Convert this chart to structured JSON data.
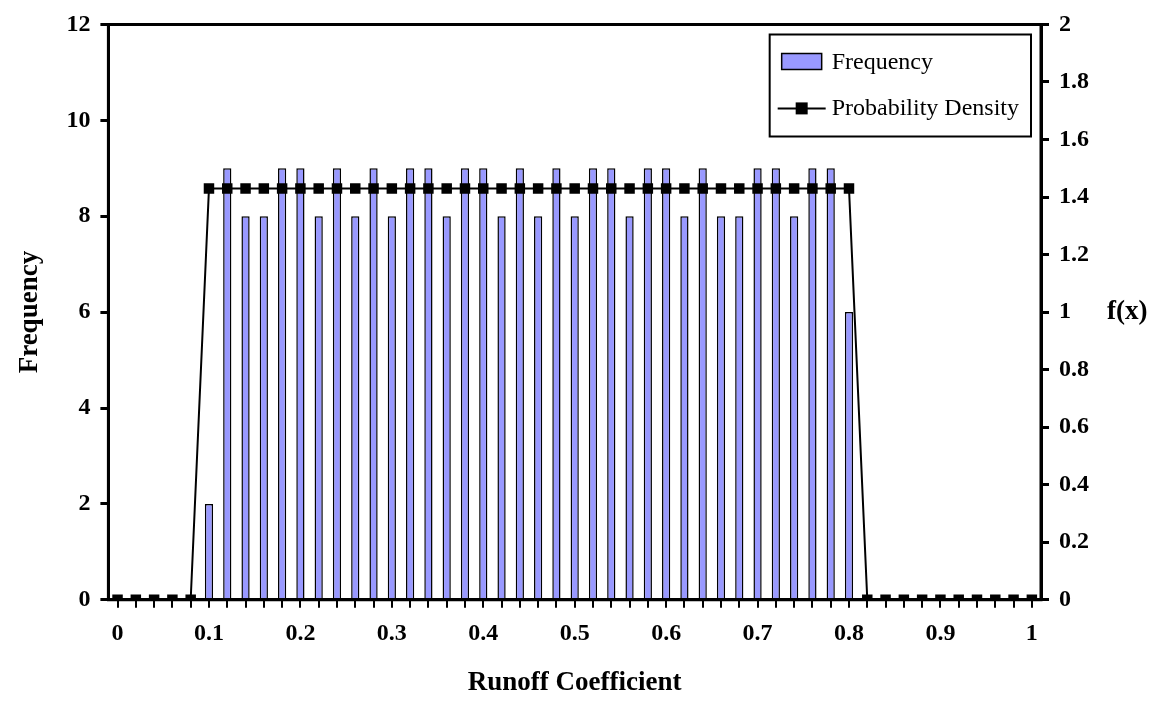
{
  "chart_data": {
    "type": "bar",
    "xlabel": "Runoff Coefficient",
    "ylabel": "Frequency",
    "y2label": "f(x)",
    "categories": [
      "0",
      null,
      null,
      null,
      null,
      "0.1",
      null,
      null,
      null,
      null,
      "0.2",
      null,
      null,
      null,
      null,
      "0.3",
      null,
      null,
      null,
      null,
      "0.4",
      null,
      null,
      null,
      null,
      "0.5",
      null,
      null,
      null,
      null,
      "0.6",
      null,
      null,
      null,
      null,
      "0.7",
      null,
      null,
      null,
      null,
      "0.8",
      null,
      null,
      null,
      null,
      "0.9",
      null,
      null,
      null,
      null,
      "1"
    ],
    "series": [
      {
        "name": "Frequency",
        "color": "#9999ff",
        "values": [
          0,
          0,
          0,
          0,
          0,
          2,
          9,
          8,
          8,
          9,
          9,
          8,
          9,
          8,
          9,
          8,
          9,
          9,
          8,
          9,
          9,
          8,
          9,
          8,
          9,
          8,
          9,
          9,
          8,
          9,
          9,
          8,
          9,
          8,
          8,
          9,
          9,
          8,
          9,
          9,
          6,
          0,
          0,
          0,
          0,
          0,
          0,
          0,
          0,
          0,
          0
        ]
      },
      {
        "name": "Probability Density",
        "type": "line",
        "axis": "y2",
        "color": "#000000",
        "values": [
          0,
          0,
          0,
          0,
          0,
          1.43,
          1.43,
          1.43,
          1.43,
          1.43,
          1.43,
          1.43,
          1.43,
          1.43,
          1.43,
          1.43,
          1.43,
          1.43,
          1.43,
          1.43,
          1.43,
          1.43,
          1.43,
          1.43,
          1.43,
          1.43,
          1.43,
          1.43,
          1.43,
          1.43,
          1.43,
          1.43,
          1.43,
          1.43,
          1.43,
          1.43,
          1.43,
          1.43,
          1.43,
          1.43,
          1.43,
          0,
          0,
          0,
          0,
          0,
          0,
          0,
          0,
          0,
          0
        ]
      }
    ],
    "ylim": [
      0,
      12
    ],
    "yticks": [
      0,
      2,
      4,
      6,
      8,
      10,
      12
    ],
    "y2lim": [
      0,
      2
    ],
    "y2ticks": [
      0,
      0.2,
      0.4,
      0.6,
      0.8,
      1,
      1.2,
      1.4,
      1.6,
      1.8,
      2
    ],
    "grid": false,
    "legend": "top right",
    "marker": "square",
    "line_style": "solid"
  }
}
